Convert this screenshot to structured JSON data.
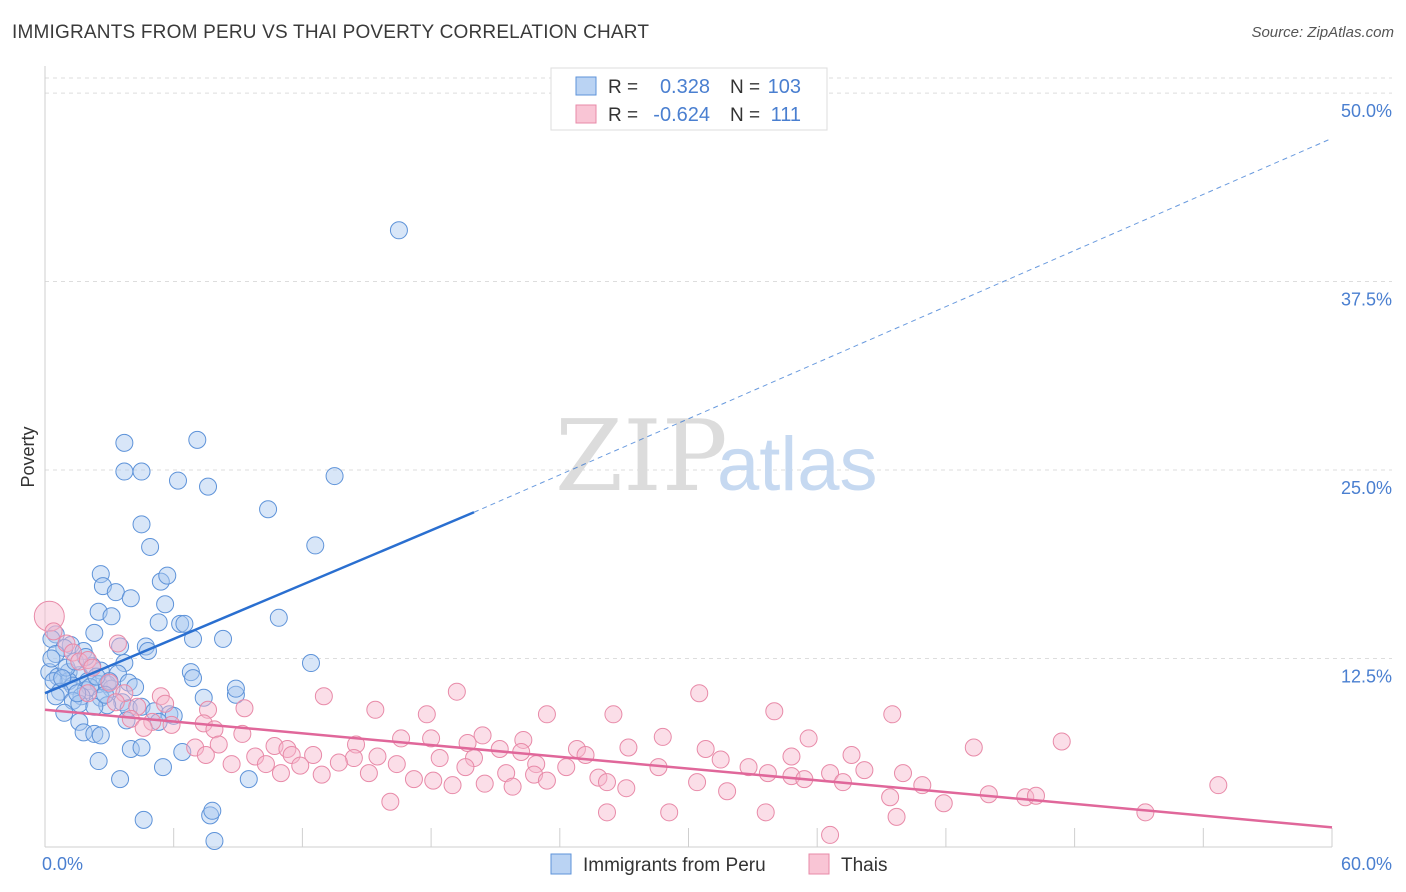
{
  "header": {
    "title": "IMMIGRANTS FROM PERU VS THAI POVERTY CORRELATION CHART",
    "source": "Source: ZipAtlas.com"
  },
  "watermark": {
    "zip": "ZIP",
    "atlas": "atlas"
  },
  "legend_top": {
    "r_label": "R =",
    "n_label": "N =",
    "rows": [
      {
        "r": "0.328",
        "n": "103"
      },
      {
        "r": "-0.624",
        "n": "111"
      }
    ]
  },
  "legend_bottom": [
    "Immigrants from Peru",
    "Thais"
  ],
  "colors": {
    "blue_fill": "#a9c8f0",
    "blue_stroke": "#5e93d9",
    "blue_line": "#2a6fd0",
    "pink_fill": "#f7b6cb",
    "pink_stroke": "#e88aa8",
    "pink_line": "#e0679a",
    "tick_label": "#4a7fd0",
    "grid": "#dddddd"
  },
  "chart_data": {
    "type": "scatter",
    "title": "IMMIGRANTS FROM PERU VS THAI POVERTY CORRELATION CHART",
    "ylabel": "Poverty",
    "xlabel": "",
    "xlim": [
      0,
      60
    ],
    "ylim": [
      0,
      51
    ],
    "x_tick_labels": [
      "0.0%",
      "60.0%"
    ],
    "y_ticks": [
      12.5,
      25.0,
      37.5,
      50.0
    ],
    "y_tick_labels": [
      "12.5%",
      "25.0%",
      "37.5%",
      "50.0%"
    ],
    "grid": true,
    "legend_position": "top-center",
    "series": [
      {
        "name": "Immigrants from Peru",
        "r": 0.328,
        "n": 103,
        "trend": {
          "x0": 0,
          "y0": 10.2,
          "x1": 20,
          "y1": 22.2,
          "dashed_to_x": 60,
          "dashed_to_y": 47.0
        },
        "points": [
          [
            16.5,
            40.9
          ],
          [
            7.1,
            27.0
          ],
          [
            3.7,
            26.8
          ],
          [
            3.7,
            24.9
          ],
          [
            4.5,
            24.9
          ],
          [
            6.2,
            24.3
          ],
          [
            7.6,
            23.9
          ],
          [
            13.5,
            24.6
          ],
          [
            10.4,
            22.4
          ],
          [
            4.5,
            21.4
          ],
          [
            12.6,
            20.0
          ],
          [
            4.9,
            19.9
          ],
          [
            2.6,
            18.1
          ],
          [
            5.4,
            17.6
          ],
          [
            5.7,
            18.0
          ],
          [
            2.7,
            17.3
          ],
          [
            3.3,
            16.9
          ],
          [
            4.0,
            16.5
          ],
          [
            5.6,
            16.1
          ],
          [
            2.5,
            15.6
          ],
          [
            3.1,
            15.3
          ],
          [
            10.9,
            15.2
          ],
          [
            5.3,
            14.9
          ],
          [
            6.3,
            14.8
          ],
          [
            6.5,
            14.8
          ],
          [
            2.3,
            14.2
          ],
          [
            0.5,
            14.1
          ],
          [
            0.3,
            13.8
          ],
          [
            6.9,
            13.8
          ],
          [
            8.3,
            13.8
          ],
          [
            1.2,
            13.4
          ],
          [
            0.9,
            13.2
          ],
          [
            3.5,
            13.3
          ],
          [
            4.7,
            13.3
          ],
          [
            1.8,
            13.0
          ],
          [
            4.8,
            13.0
          ],
          [
            0.5,
            12.8
          ],
          [
            3.7,
            12.2
          ],
          [
            12.4,
            12.2
          ],
          [
            0.2,
            11.6
          ],
          [
            1.1,
            11.6
          ],
          [
            1.6,
            11.4
          ],
          [
            0.6,
            11.3
          ],
          [
            2.6,
            11.7
          ],
          [
            3.4,
            11.5
          ],
          [
            6.8,
            11.6
          ],
          [
            6.9,
            11.2
          ],
          [
            1.1,
            11.0
          ],
          [
            0.4,
            11.0
          ],
          [
            2.0,
            11.0
          ],
          [
            2.5,
            10.8
          ],
          [
            2.9,
            10.8
          ],
          [
            3.9,
            10.9
          ],
          [
            1.3,
            10.7
          ],
          [
            1.9,
            10.4
          ],
          [
            2.1,
            10.6
          ],
          [
            3.1,
            10.5
          ],
          [
            0.7,
            10.3
          ],
          [
            1.7,
            10.0
          ],
          [
            2.6,
            9.9
          ],
          [
            0.5,
            10.0
          ],
          [
            1.3,
            9.7
          ],
          [
            1.6,
            9.5
          ],
          [
            3.6,
            9.6
          ],
          [
            2.9,
            9.4
          ],
          [
            0.9,
            8.9
          ],
          [
            2.3,
            9.3
          ],
          [
            7.4,
            9.9
          ],
          [
            8.9,
            10.1
          ],
          [
            8.9,
            10.5
          ],
          [
            3.9,
            9.2
          ],
          [
            4.5,
            9.3
          ],
          [
            5.1,
            9.0
          ],
          [
            5.8,
            8.8
          ],
          [
            6.0,
            8.7
          ],
          [
            1.6,
            8.3
          ],
          [
            3.8,
            8.4
          ],
          [
            5.3,
            8.3
          ],
          [
            1.8,
            7.6
          ],
          [
            2.3,
            7.5
          ],
          [
            2.6,
            7.4
          ],
          [
            6.4,
            6.3
          ],
          [
            4.0,
            6.5
          ],
          [
            4.5,
            6.6
          ],
          [
            2.5,
            5.7
          ],
          [
            5.5,
            5.3
          ],
          [
            3.5,
            4.5
          ],
          [
            9.5,
            4.5
          ],
          [
            4.6,
            1.8
          ],
          [
            7.7,
            2.1
          ],
          [
            7.8,
            2.4
          ],
          [
            7.9,
            0.4
          ],
          [
            1.0,
            11.9
          ],
          [
            1.4,
            12.3
          ],
          [
            2.2,
            12.0
          ],
          [
            0.8,
            11.2
          ],
          [
            3.0,
            11.0
          ],
          [
            4.2,
            10.6
          ],
          [
            1.5,
            10.2
          ],
          [
            2.8,
            10.1
          ],
          [
            0.3,
            12.5
          ],
          [
            1.9,
            12.6
          ],
          [
            2.4,
            11.3
          ]
        ]
      },
      {
        "name": "Thais",
        "r": -0.624,
        "n": 111,
        "trend": {
          "x0": 0,
          "y0": 9.1,
          "x1": 60,
          "y1": 1.3
        },
        "points": [
          [
            0.2,
            15.3
          ],
          [
            0.4,
            14.3
          ],
          [
            1.0,
            13.5
          ],
          [
            1.3,
            12.9
          ],
          [
            1.6,
            12.3
          ],
          [
            2.0,
            12.4
          ],
          [
            2.2,
            11.9
          ],
          [
            3.4,
            13.5
          ],
          [
            3.0,
            10.9
          ],
          [
            2.0,
            10.2
          ],
          [
            3.7,
            10.2
          ],
          [
            5.4,
            10.0
          ],
          [
            13.0,
            10.0
          ],
          [
            19.2,
            10.3
          ],
          [
            30.5,
            10.2
          ],
          [
            3.3,
            9.6
          ],
          [
            4.3,
            9.3
          ],
          [
            5.6,
            9.5
          ],
          [
            7.6,
            9.1
          ],
          [
            9.3,
            9.2
          ],
          [
            15.4,
            9.1
          ],
          [
            17.8,
            8.8
          ],
          [
            23.4,
            8.8
          ],
          [
            26.5,
            8.8
          ],
          [
            34.0,
            9.0
          ],
          [
            39.5,
            8.8
          ],
          [
            4.0,
            8.5
          ],
          [
            5.0,
            8.3
          ],
          [
            5.9,
            8.1
          ],
          [
            7.4,
            8.2
          ],
          [
            4.6,
            7.9
          ],
          [
            7.9,
            7.8
          ],
          [
            9.2,
            7.5
          ],
          [
            16.6,
            7.2
          ],
          [
            18.0,
            7.2
          ],
          [
            20.4,
            7.4
          ],
          [
            22.3,
            7.1
          ],
          [
            28.8,
            7.3
          ],
          [
            35.6,
            7.2
          ],
          [
            47.4,
            7.0
          ],
          [
            7.0,
            6.6
          ],
          [
            8.1,
            6.8
          ],
          [
            10.7,
            6.7
          ],
          [
            11.3,
            6.5
          ],
          [
            14.5,
            6.8
          ],
          [
            19.7,
            6.9
          ],
          [
            21.2,
            6.5
          ],
          [
            24.8,
            6.5
          ],
          [
            27.2,
            6.6
          ],
          [
            30.8,
            6.5
          ],
          [
            43.3,
            6.6
          ],
          [
            7.5,
            6.1
          ],
          [
            9.8,
            6.0
          ],
          [
            11.5,
            6.1
          ],
          [
            12.5,
            6.1
          ],
          [
            14.4,
            5.9
          ],
          [
            15.5,
            6.0
          ],
          [
            18.4,
            5.9
          ],
          [
            20.0,
            5.9
          ],
          [
            22.2,
            6.3
          ],
          [
            25.2,
            6.1
          ],
          [
            31.5,
            5.8
          ],
          [
            34.8,
            6.0
          ],
          [
            37.6,
            6.1
          ],
          [
            8.7,
            5.5
          ],
          [
            10.3,
            5.5
          ],
          [
            11.9,
            5.4
          ],
          [
            13.7,
            5.6
          ],
          [
            16.4,
            5.5
          ],
          [
            19.6,
            5.3
          ],
          [
            22.9,
            5.5
          ],
          [
            24.3,
            5.3
          ],
          [
            28.6,
            5.3
          ],
          [
            32.8,
            5.3
          ],
          [
            38.2,
            5.1
          ],
          [
            11.0,
            4.9
          ],
          [
            12.9,
            4.8
          ],
          [
            15.1,
            4.9
          ],
          [
            21.5,
            4.9
          ],
          [
            22.8,
            4.8
          ],
          [
            25.8,
            4.6
          ],
          [
            33.7,
            4.9
          ],
          [
            34.8,
            4.7
          ],
          [
            36.6,
            4.9
          ],
          [
            40.0,
            4.9
          ],
          [
            17.2,
            4.5
          ],
          [
            18.1,
            4.4
          ],
          [
            19.0,
            4.1
          ],
          [
            20.5,
            4.2
          ],
          [
            21.8,
            4.0
          ],
          [
            23.4,
            4.4
          ],
          [
            26.2,
            4.3
          ],
          [
            27.1,
            3.9
          ],
          [
            30.4,
            4.3
          ],
          [
            35.4,
            4.5
          ],
          [
            37.2,
            4.3
          ],
          [
            40.9,
            4.1
          ],
          [
            44.0,
            3.5
          ],
          [
            45.7,
            3.3
          ],
          [
            46.2,
            3.4
          ],
          [
            54.7,
            4.1
          ],
          [
            16.1,
            3.0
          ],
          [
            31.8,
            3.7
          ],
          [
            39.4,
            3.3
          ],
          [
            41.9,
            2.9
          ],
          [
            26.2,
            2.3
          ],
          [
            29.1,
            2.3
          ],
          [
            33.6,
            2.3
          ],
          [
            39.7,
            2.0
          ],
          [
            51.3,
            2.3
          ],
          [
            36.6,
            0.8
          ]
        ]
      }
    ]
  }
}
